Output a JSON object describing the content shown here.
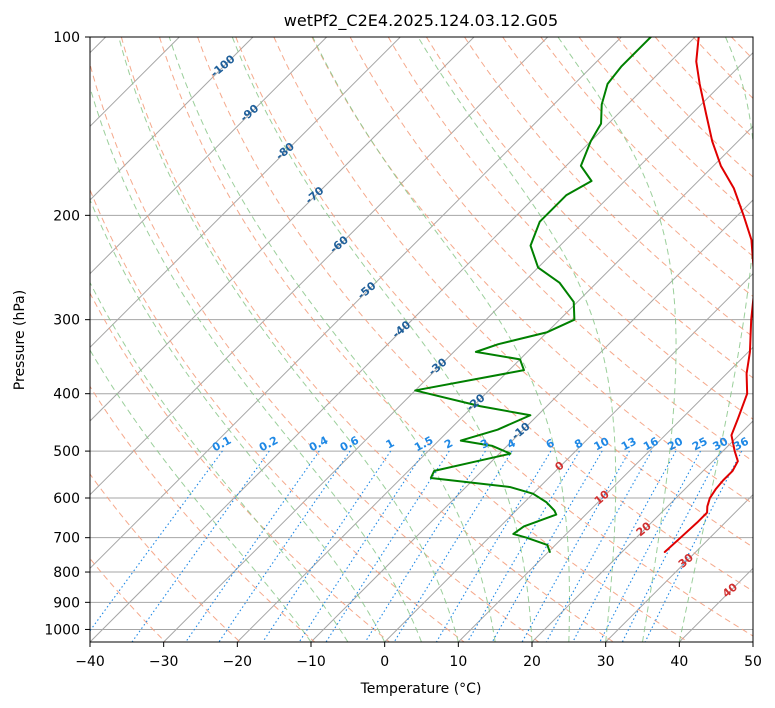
{
  "chart_data": {
    "type": "line",
    "title": "wetPf2_C2E4.2025.124.03.12.G05",
    "xlabel": "Temperature (°C)",
    "ylabel": "Pressure (hPa)",
    "xlim": [
      -40,
      50
    ],
    "ylim": [
      1050,
      100
    ],
    "y_scale": "log",
    "x_ticks": [
      -40,
      -30,
      -20,
      -10,
      0,
      10,
      20,
      30,
      40,
      50
    ],
    "y_ticks": [
      100,
      200,
      300,
      400,
      500,
      600,
      700,
      800,
      900,
      1000
    ],
    "skew_t_log_p": true,
    "grid": true,
    "legend": "none",
    "series": [
      {
        "color": "#e00000",
        "points": [
          {
            "p": 740,
            "t": 25.8
          },
          {
            "p": 700,
            "t": 26.0
          },
          {
            "p": 660,
            "t": 26.2
          },
          {
            "p": 635,
            "t": 26.2
          },
          {
            "p": 620,
            "t": 25.4
          },
          {
            "p": 600,
            "t": 24.6
          },
          {
            "p": 580,
            "t": 24.2
          },
          {
            "p": 560,
            "t": 24.0
          },
          {
            "p": 540,
            "t": 24.0
          },
          {
            "p": 520,
            "t": 23.4
          },
          {
            "p": 500,
            "t": 21.6
          },
          {
            "p": 470,
            "t": 19.0
          },
          {
            "p": 440,
            "t": 17.6
          },
          {
            "p": 400,
            "t": 15.5
          },
          {
            "p": 370,
            "t": 12.7
          },
          {
            "p": 340,
            "t": 10.2
          },
          {
            "p": 300,
            "t": 6.0
          },
          {
            "p": 270,
            "t": 2.7
          },
          {
            "p": 250,
            "t": 0.0
          },
          {
            "p": 220,
            "t": -4.8
          },
          {
            "p": 200,
            "t": -9.2
          },
          {
            "p": 180,
            "t": -14.2
          },
          {
            "p": 165,
            "t": -19.0
          },
          {
            "p": 150,
            "t": -23.5
          },
          {
            "p": 135,
            "t": -28.0
          },
          {
            "p": 120,
            "t": -33.0
          },
          {
            "p": 110,
            "t": -36.5
          },
          {
            "p": 100,
            "t": -39.5
          }
        ]
      },
      {
        "color": "#008000",
        "points": [
          {
            "p": 740,
            "t": 10.2
          },
          {
            "p": 720,
            "t": 8.9
          },
          {
            "p": 700,
            "t": 5.1
          },
          {
            "p": 690,
            "t": 2.8
          },
          {
            "p": 670,
            "t": 3.2
          },
          {
            "p": 640,
            "t": 6.0
          },
          {
            "p": 630,
            "t": 5.2
          },
          {
            "p": 610,
            "t": 3.0
          },
          {
            "p": 590,
            "t": 0.0
          },
          {
            "p": 575,
            "t": -4.0
          },
          {
            "p": 555,
            "t": -16.0
          },
          {
            "p": 540,
            "t": -16.5
          },
          {
            "p": 520,
            "t": -12.0
          },
          {
            "p": 505,
            "t": -8.5
          },
          {
            "p": 490,
            "t": -12.0
          },
          {
            "p": 480,
            "t": -17.0
          },
          {
            "p": 460,
            "t": -13.5
          },
          {
            "p": 435,
            "t": -11.0
          },
          {
            "p": 420,
            "t": -19.0
          },
          {
            "p": 395,
            "t": -30.0
          },
          {
            "p": 365,
            "t": -18.0
          },
          {
            "p": 350,
            "t": -20.0
          },
          {
            "p": 340,
            "t": -27.0
          },
          {
            "p": 330,
            "t": -25.0
          },
          {
            "p": 315,
            "t": -20.0
          },
          {
            "p": 300,
            "t": -18.0
          },
          {
            "p": 280,
            "t": -20.5
          },
          {
            "p": 260,
            "t": -25.0
          },
          {
            "p": 245,
            "t": -30.0
          },
          {
            "p": 225,
            "t": -34.0
          },
          {
            "p": 205,
            "t": -36.0
          },
          {
            "p": 185,
            "t": -36.0
          },
          {
            "p": 175,
            "t": -34.5
          },
          {
            "p": 165,
            "t": -38.0
          },
          {
            "p": 150,
            "t": -40.0
          },
          {
            "p": 140,
            "t": -41.0
          },
          {
            "p": 130,
            "t": -43.5
          },
          {
            "p": 120,
            "t": -45.5
          },
          {
            "p": 112,
            "t": -46.0
          },
          {
            "p": 105,
            "t": -46.0
          },
          {
            "p": 100,
            "t": -46.0
          }
        ]
      }
    ],
    "isotherm_labels": [
      -100,
      -90,
      -80,
      -70,
      -60,
      -50,
      -40,
      -30,
      -20,
      -10,
      0,
      10,
      20,
      30,
      40
    ],
    "mixing_ratio_labels": [
      "0.1",
      "0.2",
      "0.4",
      "0.6",
      "1",
      "1.5",
      "2",
      "3",
      "4",
      "6",
      "8",
      "10",
      "13",
      "16",
      "20",
      "25",
      "30",
      "36"
    ],
    "colors": {
      "temperature": "#e00000",
      "dewpoint": "#008000",
      "isotherm_negative_labels": "#1f5f9a",
      "isotherm_positive_labels": "#d03030",
      "mixing_ratio": "#1e88e5",
      "dry_adiabat": "#f4a080",
      "moist_adiabat": "#89c789",
      "grid": "#9a9a9a"
    }
  }
}
